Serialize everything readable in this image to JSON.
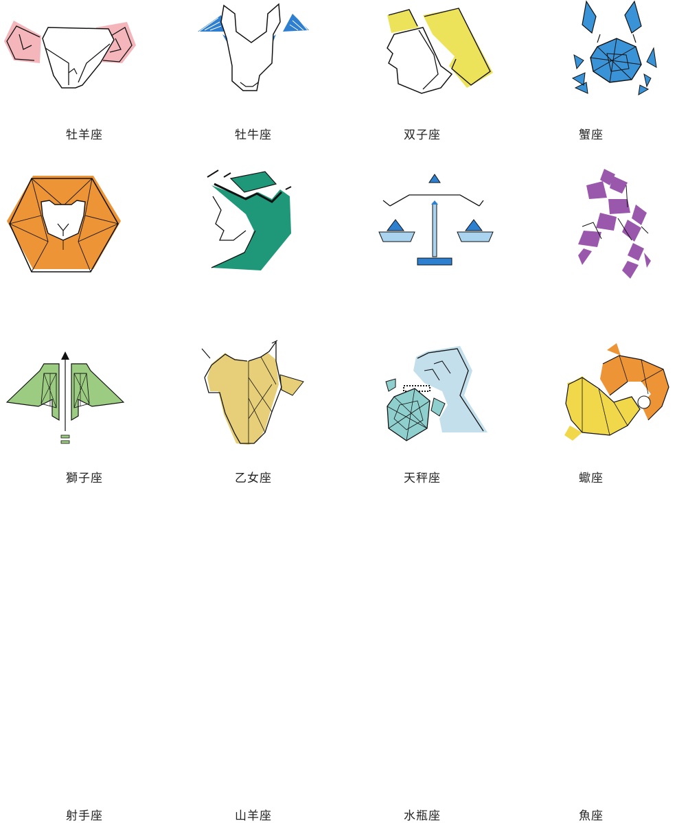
{
  "signs": [
    {
      "label": "牡羊座",
      "icon": "aries-ram-icon",
      "color": "#f4b6bb"
    },
    {
      "label": "牡牛座",
      "icon": "taurus-bull-icon",
      "color": "#2f7fd0"
    },
    {
      "label": "双子座",
      "icon": "gemini-twins-icon",
      "color": "#ede35a"
    },
    {
      "label": "蟹座",
      "icon": "cancer-crab-icon",
      "color": "#3a93d6"
    },
    {
      "label": "獅子座",
      "icon": "leo-lion-icon",
      "color": "#ec9436"
    },
    {
      "label": "乙女座",
      "icon": "virgo-maiden-icon",
      "color": "#1e9878"
    },
    {
      "label": "天秤座",
      "icon": "libra-scales-icon",
      "color": "#2d7fcf"
    },
    {
      "label": "蠍座",
      "icon": "scorpio-scorpion-icon",
      "color": "#9a58ad"
    },
    {
      "label": "射手座",
      "icon": "sagittarius-archer-icon",
      "color": "#9ccc82"
    },
    {
      "label": "山羊座",
      "icon": "capricorn-goat-icon",
      "color": "#e6cf78"
    },
    {
      "label": "水瓶座",
      "icon": "aquarius-water-bearer-icon",
      "color": "#8fd0ce"
    },
    {
      "label": "魚座",
      "icon": "pisces-fish-icon",
      "color": "#f0d84a"
    }
  ]
}
